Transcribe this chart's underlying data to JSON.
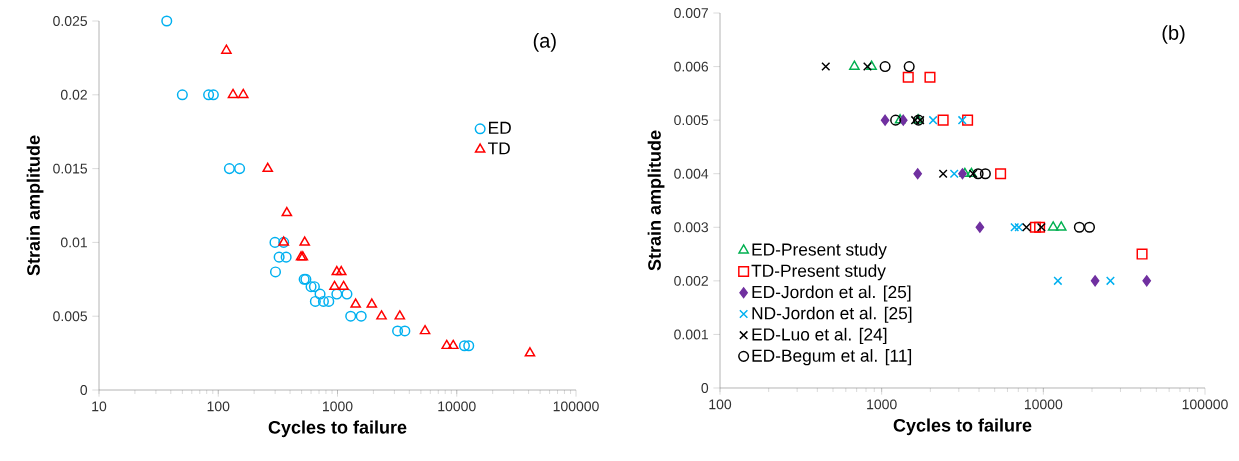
{
  "chart_data": [
    {
      "type": "scatter",
      "xlabel": "Cycles to failure",
      "ylabel": "Strain amplitude",
      "annotations": [
        "(a)"
      ],
      "log": "x",
      "grid": false,
      "legend": "right",
      "xlim": [
        10,
        100000
      ],
      "xticks": [
        10,
        100,
        1000,
        10000,
        100000
      ],
      "ylim": [
        0,
        0.025
      ],
      "yticks": [
        0,
        0.005,
        0.01,
        0.015,
        0.02,
        0.025
      ],
      "series": [
        {
          "name": "ED",
          "color": "#00b0f0",
          "marker": "circle",
          "x": [
            37,
            50,
            83,
            91,
            124,
            151,
            299,
            354,
            324,
            371,
            302,
            525,
            543,
            600,
            640,
            714,
            652,
            762,
            845,
            987,
            1200,
            1290,
            1580,
            3190,
            3670,
            11600,
            12600
          ],
          "values": [
            0.025,
            0.02,
            0.02,
            0.02,
            0.015,
            0.015,
            0.01,
            0.01,
            0.009,
            0.009,
            0.008,
            0.0075,
            0.0075,
            0.007,
            0.007,
            0.0065,
            0.006,
            0.006,
            0.006,
            0.0065,
            0.0065,
            0.005,
            0.005,
            0.004,
            0.004,
            0.003,
            0.003
          ]
        },
        {
          "name": "TD",
          "color": "#ff0000",
          "marker": "triangle",
          "x": [
            117,
            133,
            162,
            260,
            376,
            354,
            531,
            495,
            512,
            987,
            1075,
            944,
            1125,
            1420,
            1940,
            2340,
            3330,
            5420,
            8240,
            9340,
            41100
          ],
          "values": [
            0.023,
            0.02,
            0.02,
            0.015,
            0.012,
            0.01,
            0.01,
            0.009,
            0.009,
            0.008,
            0.008,
            0.007,
            0.007,
            0.0058,
            0.0058,
            0.005,
            0.005,
            0.004,
            0.003,
            0.003,
            0.0025
          ]
        }
      ]
    },
    {
      "type": "scatter",
      "xlabel": "Cycles to failure",
      "ylabel": "Strain amplitude",
      "annotations": [
        "(b)"
      ],
      "log": "x",
      "grid": false,
      "legend": "bottom left",
      "xlim": [
        100,
        100000
      ],
      "xticks": [
        100,
        1000,
        10000,
        100000
      ],
      "ylim": [
        0,
        0.007
      ],
      "yticks": [
        0,
        0.001,
        0.002,
        0.003,
        0.004,
        0.005,
        0.006,
        0.007
      ],
      "series": [
        {
          "name": "ED-Present study",
          "color": "#00b050",
          "marker": "triangle",
          "x": [
            678,
            866,
            1300,
            1680,
            3270,
            3590,
            11500,
            12900
          ],
          "values": [
            0.006,
            0.006,
            0.005,
            0.005,
            0.004,
            0.004,
            0.003,
            0.003
          ]
        },
        {
          "name": "TD-Present study",
          "color": "#ff0000",
          "marker": "square",
          "x": [
            1460,
            1990,
            2400,
            3400,
            5440,
            8930,
            9480,
            40800
          ],
          "values": [
            0.0058,
            0.0058,
            0.005,
            0.005,
            0.004,
            0.003,
            0.003,
            0.0025
          ]
        },
        {
          "name": "ED-Jordon et al. [25]",
          "color": "#7030a0",
          "marker": "diamond",
          "x": [
            1050,
            1360,
            1670,
            3160,
            4050,
            20900,
            43600
          ],
          "values": [
            0.005,
            0.005,
            0.004,
            0.004,
            0.003,
            0.002,
            0.002
          ]
        },
        {
          "name": "ND-Jordon et al. [25]",
          "color": "#00b0f0",
          "marker": "cross",
          "x": [
            2080,
            3150,
            2810,
            6650,
            7050,
            12300,
            26000
          ],
          "values": [
            0.005,
            0.005,
            0.004,
            0.003,
            0.003,
            0.002,
            0.002
          ]
        },
        {
          "name": "ED-Luo et al. [24]",
          "color": "#000000",
          "marker": "cross",
          "x": [
            451,
            817,
            1610,
            1730,
            2400,
            3680,
            7860,
            9720
          ],
          "values": [
            0.006,
            0.006,
            0.005,
            0.005,
            0.004,
            0.004,
            0.003,
            0.003
          ]
        },
        {
          "name": "ED-Begum et al. [11]",
          "color": "#000000",
          "marker": "circle",
          "x": [
            1050,
            1480,
            1220,
            1690,
            3950,
            4380,
            16700,
            19300
          ],
          "values": [
            0.006,
            0.006,
            0.005,
            0.005,
            0.004,
            0.004,
            0.003,
            0.003
          ]
        }
      ]
    }
  ]
}
